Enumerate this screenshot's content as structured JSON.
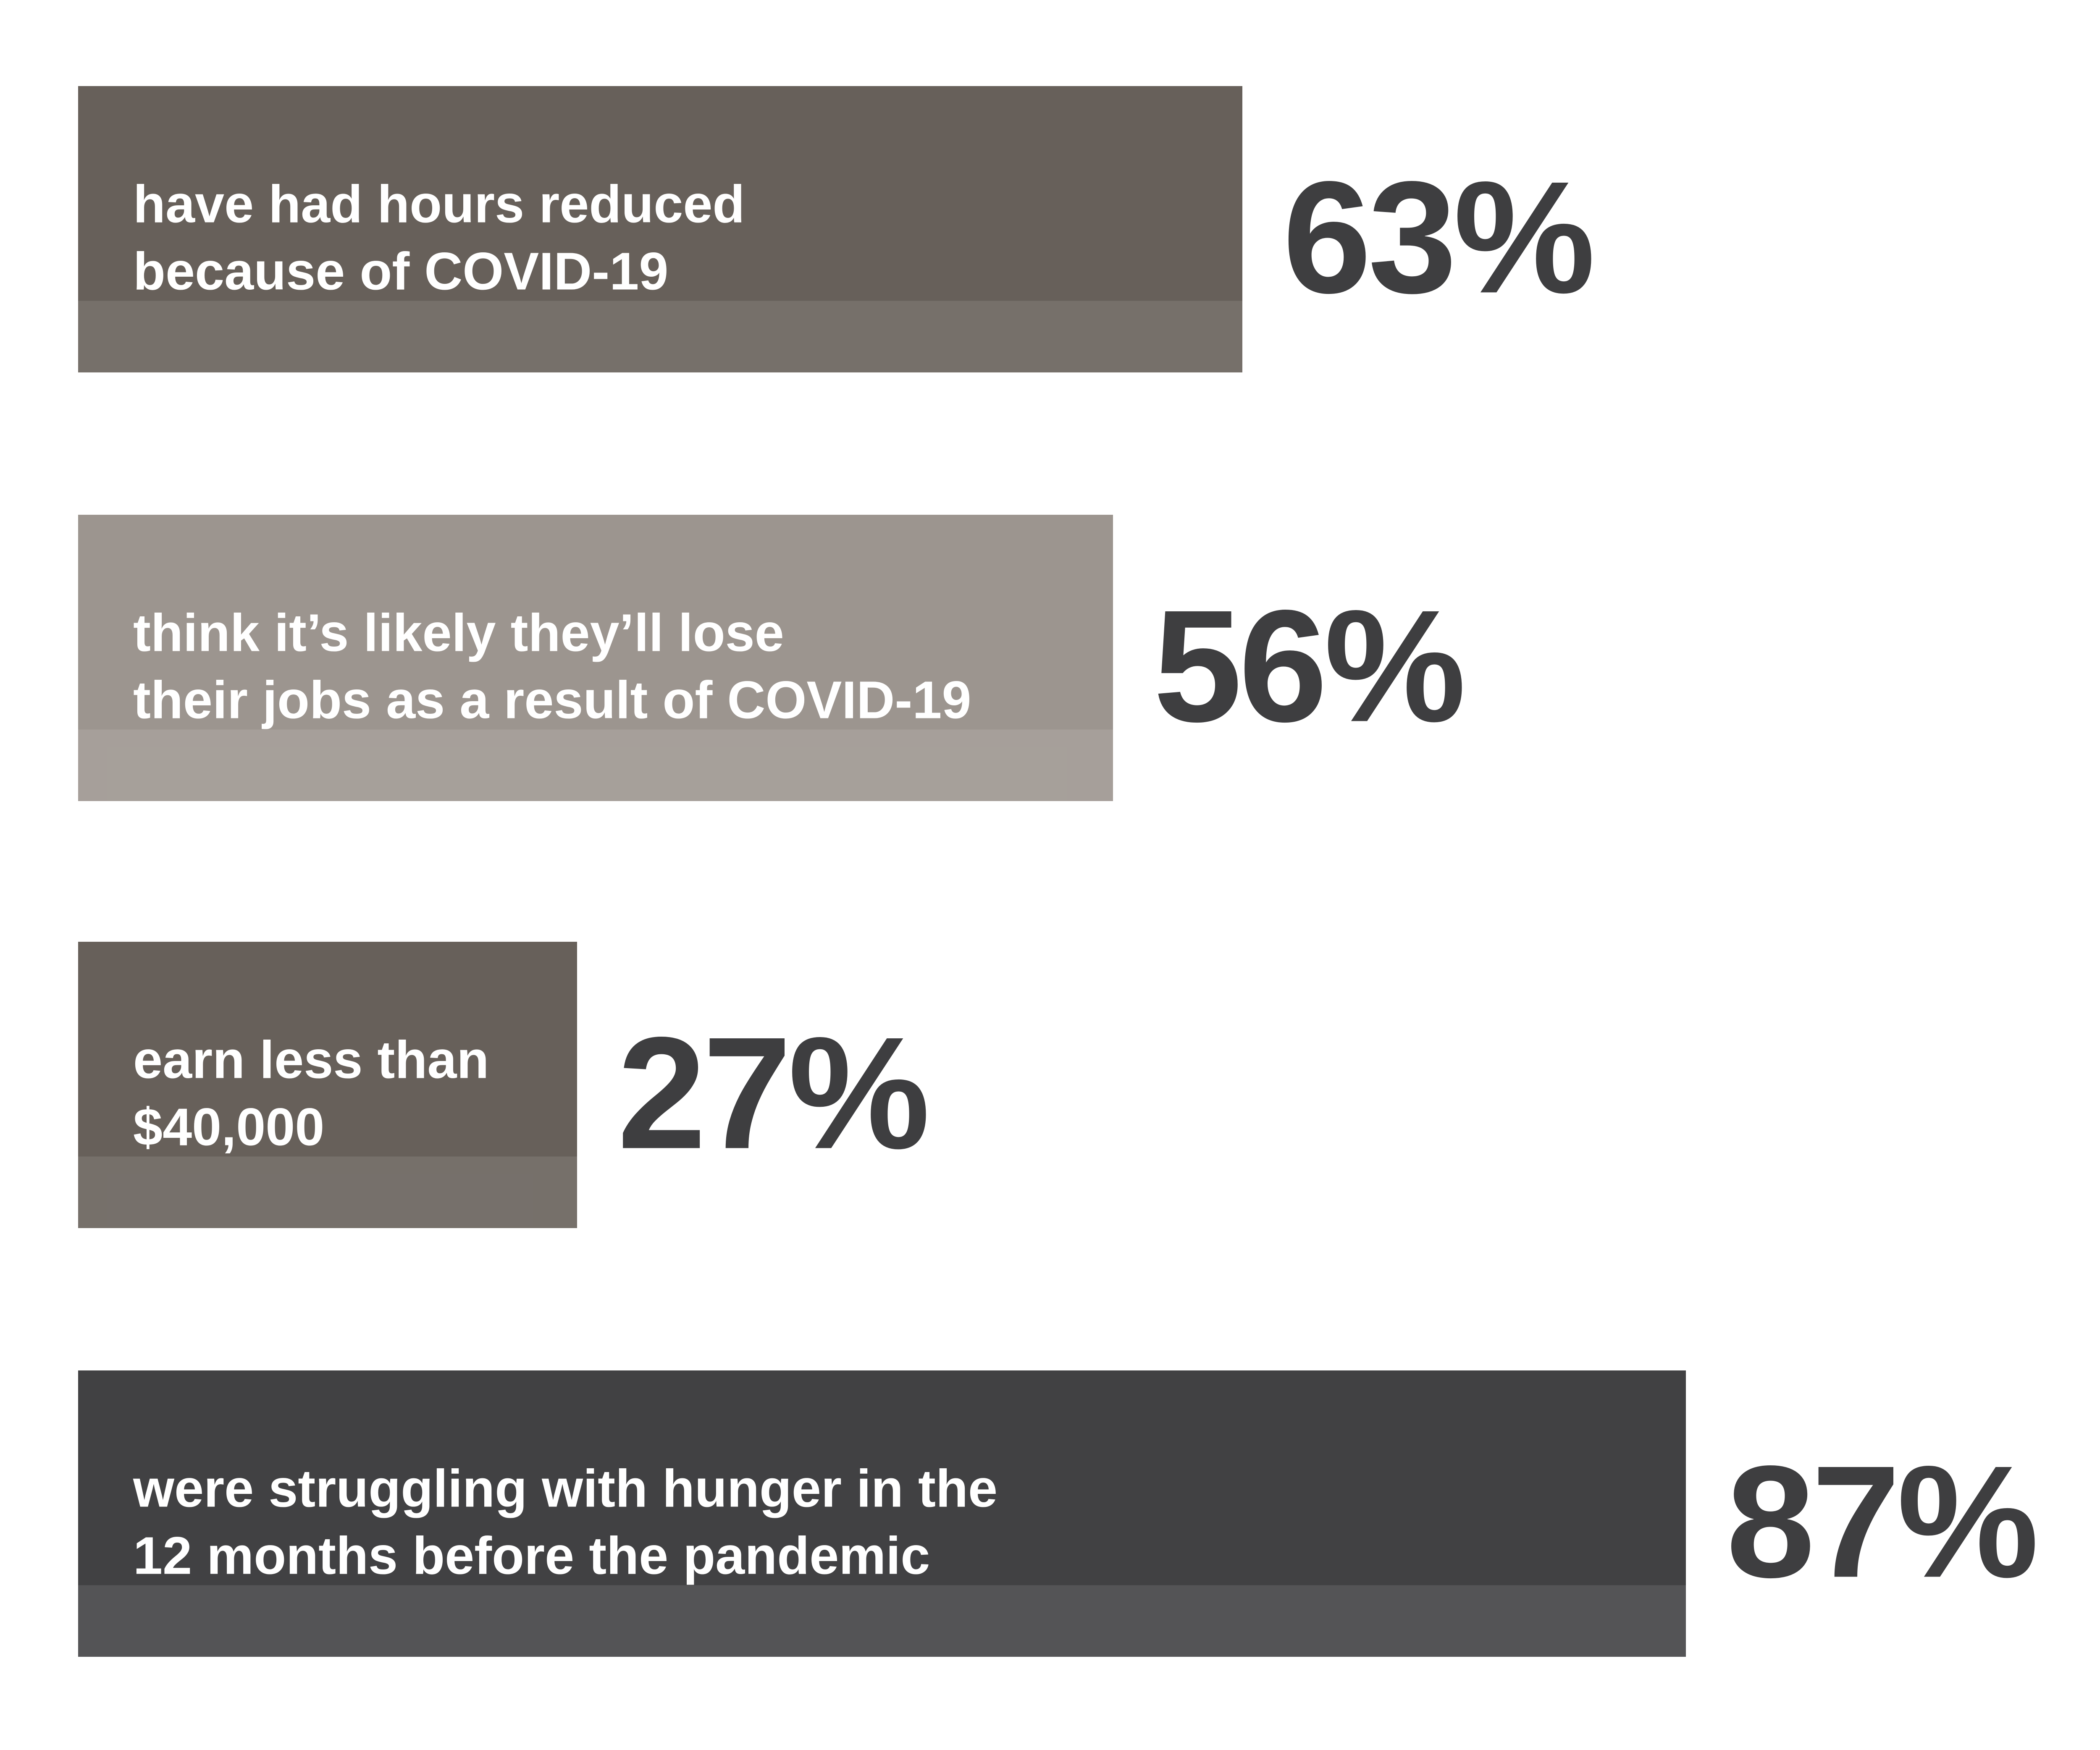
{
  "chart_data": {
    "type": "bar",
    "orientation": "horizontal",
    "categories": [
      [
        "have had hours reduced",
        "because of COVID-19"
      ],
      [
        "think it’s likely they’ll lose",
        "their jobs as a result of COVID-19"
      ],
      [
        "earn less than",
        "$40,000"
      ],
      [
        "were struggling with hunger in the",
        "12 months before the pandemic"
      ]
    ],
    "values": [
      63,
      56,
      27,
      87
    ],
    "value_labels": [
      "63%",
      "56%",
      "27%",
      "87%"
    ],
    "colors": [
      "#67605a",
      "#9c958f",
      "#67605a",
      "#414143"
    ],
    "xlim": [
      0,
      100
    ]
  }
}
